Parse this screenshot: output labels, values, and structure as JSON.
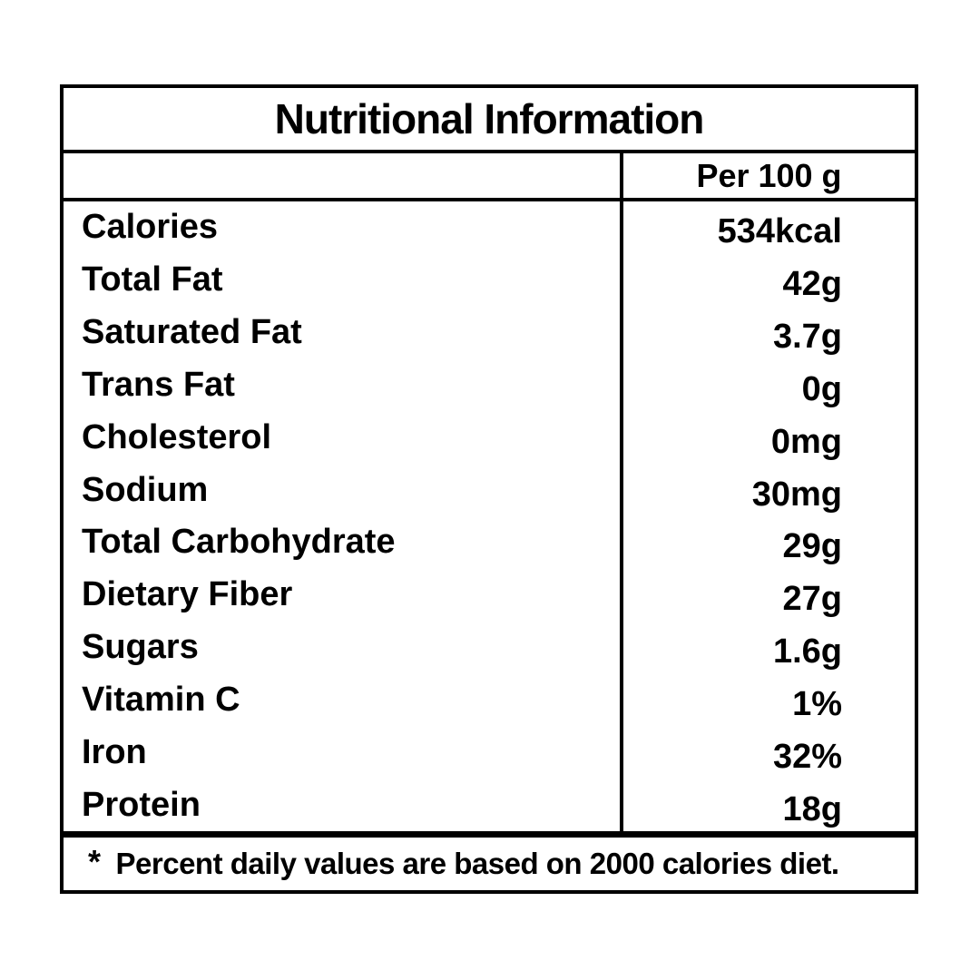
{
  "title": "Nutritional Information",
  "header": {
    "column_label": "Per 100 g"
  },
  "rows": [
    {
      "label": "Calories",
      "value": "534kcal"
    },
    {
      "label": "Total Fat",
      "value": "42g"
    },
    {
      "label": "Saturated Fat",
      "value": "3.7g"
    },
    {
      "label": "Trans Fat",
      "value": "0g"
    },
    {
      "label": "Cholesterol",
      "value": "0mg"
    },
    {
      "label": "Sodium",
      "value": "30mg"
    },
    {
      "label": "Total Carbohydrate",
      "value": "29g"
    },
    {
      "label": "Dietary Fiber",
      "value": "27g"
    },
    {
      "label": "Sugars",
      "value": "1.6g"
    },
    {
      "label": "Vitamin C",
      "value": "1%"
    },
    {
      "label": "Iron",
      "value": "32%"
    },
    {
      "label": "Protein",
      "value": "18g"
    }
  ],
  "footnote": {
    "marker": "*",
    "text": "Percent daily values are based on 2000 calories diet."
  },
  "colors": {
    "border": "#000000",
    "text": "#000000",
    "background": "#ffffff"
  }
}
